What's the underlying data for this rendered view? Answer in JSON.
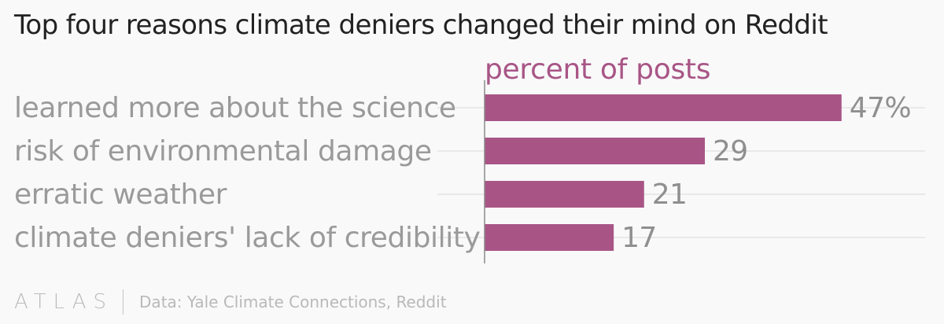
{
  "title": "Top four reasons climate deniers changed their mind on Reddit",
  "footer": {
    "logo": "ATLAS",
    "source": "Data: Yale Climate Connections, Reddit"
  },
  "colors": {
    "bar": "#a85586",
    "subtitle": "#a85586",
    "category_text": "#9a9a9a",
    "value_text": "#8f8f8f",
    "gridline": "#e4e4e4",
    "axis": "#8a8a8a",
    "background": "#f9f9f9"
  },
  "chart_data": {
    "type": "bar",
    "orientation": "horizontal",
    "title": "Top four reasons climate deniers changed their mind on Reddit",
    "subtitle": "percent of posts",
    "categories": [
      "learned more about the science",
      "risk of environmental damage",
      "erratic weather",
      "climate deniers' lack of credibility"
    ],
    "values": [
      47,
      29,
      21,
      17
    ],
    "value_labels": [
      "47%",
      "29",
      "21",
      "17"
    ],
    "xlim": [
      0,
      58
    ],
    "grid": true,
    "legend": "none"
  }
}
